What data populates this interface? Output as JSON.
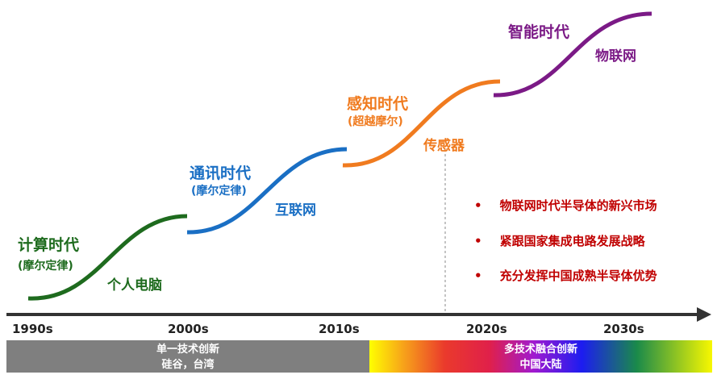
{
  "eras": [
    {
      "title": "计算时代",
      "sub": "(摩尔定律)",
      "tech": "个人电脑",
      "color": "#1e6b1e"
    },
    {
      "title": "通讯时代",
      "sub": "(摩尔定律)",
      "tech": "互联网",
      "color": "#1a6fc4"
    },
    {
      "title": "感知时代",
      "sub": "(超越摩尔)",
      "tech": "传感器",
      "color": "#f07b1f"
    },
    {
      "title": "智能时代",
      "tech": "物联网",
      "color": "#7b1a86"
    }
  ],
  "years": [
    "1990s",
    "2000s",
    "2010s",
    "2020s",
    "2030s"
  ],
  "bullets": [
    "物联网时代半导体的新兴市场",
    "紧跟国家集成电路发展战略",
    "充分发挥中国成熟半导体优势"
  ],
  "bullet_color": "#c00000",
  "bands": [
    {
      "line1": "单一技术创新",
      "line2": "硅谷，台湾",
      "color": "#7f7f7f"
    },
    {
      "line1": "多技术融合创新",
      "line2": "中国大陆"
    }
  ]
}
